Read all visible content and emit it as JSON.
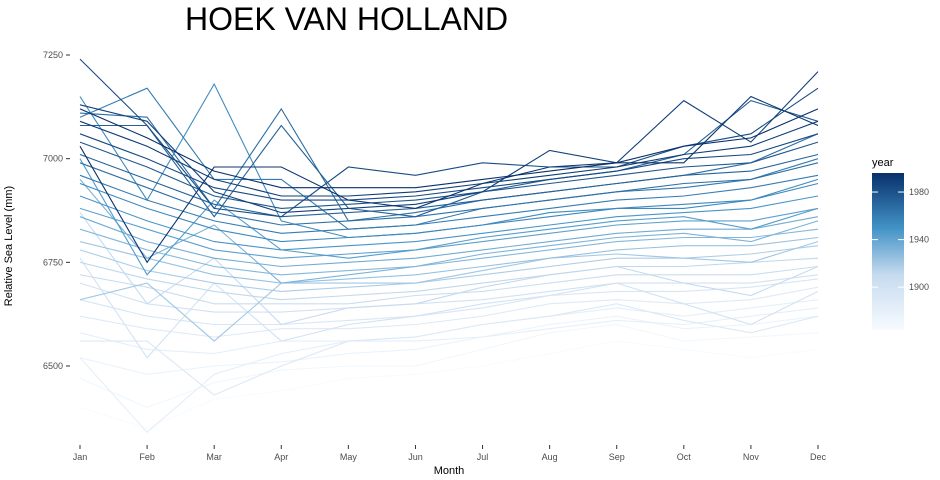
{
  "chart_data": {
    "type": "line",
    "title": "HOEK VAN HOLLAND",
    "xlabel": "Month",
    "ylabel": "Relative Sea Level (mm)",
    "categories": [
      "Jan",
      "Feb",
      "Mar",
      "Apr",
      "May",
      "Jun",
      "Jul",
      "Aug",
      "Sep",
      "Oct",
      "Nov",
      "Dec"
    ],
    "ylim": [
      6320,
      7250
    ],
    "yticks": [
      6500,
      6750,
      7000,
      7250
    ],
    "grid": false,
    "legend": {
      "title": "year",
      "position": "right",
      "ticks": [
        1900,
        1940,
        1980
      ],
      "range": [
        1864,
        1996
      ],
      "color_low": "#f7fbff",
      "color_high": "#08306b"
    },
    "series_note": "one line per year; color encodes year",
    "series": [
      {
        "year": 1864,
        "values": [
          6400,
          6350,
          6420,
          6440,
          6470,
          6480,
          6500,
          6530,
          6560,
          6540,
          6520,
          6540
        ]
      },
      {
        "year": 1870,
        "values": [
          6470,
          6400,
          6460,
          6490,
          6500,
          6500,
          6540,
          6580,
          6600,
          6560,
          6570,
          6580
        ]
      },
      {
        "year": 1876,
        "values": [
          6520,
          6480,
          6500,
          6510,
          6530,
          6540,
          6570,
          6600,
          6620,
          6590,
          6600,
          6620
        ]
      },
      {
        "year": 1882,
        "values": [
          6580,
          6540,
          6530,
          6560,
          6560,
          6570,
          6600,
          6620,
          6640,
          6620,
          6640,
          6660
        ]
      },
      {
        "year": 1888,
        "values": [
          6620,
          6590,
          6570,
          6590,
          6590,
          6600,
          6620,
          6650,
          6660,
          6650,
          6660,
          6690
        ]
      },
      {
        "year": 1894,
        "values": [
          6660,
          6620,
          6600,
          6600,
          6610,
          6620,
          6640,
          6670,
          6680,
          6680,
          6690,
          6710
        ]
      },
      {
        "year": 1900,
        "values": [
          6700,
          6650,
          6630,
          6630,
          6640,
          6650,
          6660,
          6680,
          6700,
          6700,
          6700,
          6720
        ]
      },
      {
        "year": 1906,
        "values": [
          6720,
          6690,
          6650,
          6650,
          6650,
          6670,
          6680,
          6700,
          6720,
          6720,
          6720,
          6740
        ]
      },
      {
        "year": 1912,
        "values": [
          6750,
          6710,
          6680,
          6660,
          6670,
          6680,
          6700,
          6720,
          6740,
          6740,
          6750,
          6760
        ]
      },
      {
        "year": 1918,
        "values": [
          6780,
          6730,
          6700,
          6680,
          6690,
          6700,
          6720,
          6740,
          6760,
          6760,
          6770,
          6790
        ]
      },
      {
        "year": 1924,
        "values": [
          6800,
          6760,
          6720,
          6700,
          6710,
          6720,
          6740,
          6760,
          6780,
          6790,
          6790,
          6810
        ]
      },
      {
        "year": 1930,
        "values": [
          6830,
          6780,
          6740,
          6720,
          6730,
          6740,
          6760,
          6780,
          6800,
          6810,
          6810,
          6830
        ]
      },
      {
        "year": 1936,
        "values": [
          6860,
          6800,
          6760,
          6740,
          6750,
          6760,
          6780,
          6800,
          6820,
          6830,
          6830,
          6860
        ]
      },
      {
        "year": 1942,
        "values": [
          6880,
          6830,
          6780,
          6760,
          6770,
          6780,
          6800,
          6820,
          6840,
          6850,
          6850,
          6880
        ]
      },
      {
        "year": 1948,
        "values": [
          6910,
          6850,
          6800,
          6780,
          6790,
          6800,
          6820,
          6840,
          6860,
          6870,
          6880,
          6910
        ]
      },
      {
        "year": 1954,
        "values": [
          6940,
          6880,
          6830,
          6800,
          6810,
          6820,
          6840,
          6860,
          6880,
          6890,
          6900,
          6940
        ]
      },
      {
        "year": 1960,
        "values": [
          6960,
          6900,
          6850,
          6820,
          6830,
          6840,
          6860,
          6880,
          6900,
          6910,
          6930,
          6960
        ]
      },
      {
        "year": 1966,
        "values": [
          6990,
          6930,
          6870,
          6840,
          6850,
          6860,
          6880,
          6900,
          6920,
          6940,
          6950,
          6990
        ]
      },
      {
        "year": 1972,
        "values": [
          7010,
          6950,
          6890,
          6860,
          6870,
          6880,
          6900,
          6920,
          6940,
          6960,
          6970,
          7010
        ]
      },
      {
        "year": 1978,
        "values": [
          7040,
          6980,
          6910,
          6880,
          6890,
          6900,
          6920,
          6940,
          6960,
          6980,
          6990,
          7040
        ]
      },
      {
        "year": 1984,
        "values": [
          7060,
          7000,
          6930,
          6900,
          6900,
          6910,
          6930,
          6950,
          6970,
          7000,
          7010,
          7060
        ]
      },
      {
        "year": 1990,
        "values": [
          7090,
          7030,
          6950,
          6910,
          6910,
          6920,
          6940,
          6960,
          6980,
          7010,
          7030,
          7090
        ]
      },
      {
        "year": 1996,
        "values": [
          7120,
          7050,
          6970,
          6930,
          6930,
          6930,
          6950,
          6970,
          6990,
          7030,
          7050,
          7120
        ]
      },
      {
        "year": 1881,
        "values": [
          6520,
          6340,
          6480,
          6530,
          6560,
          6560,
          6570,
          6590,
          6610,
          6600,
          6620,
          6640
        ]
      },
      {
        "year": 1890,
        "values": [
          6560,
          6560,
          6430,
          6500,
          6560,
          6570,
          6600,
          6620,
          6650,
          6610,
          6580,
          6620
        ]
      },
      {
        "year": 1899,
        "values": [
          6760,
          6520,
          6700,
          6560,
          6600,
          6620,
          6650,
          6670,
          6700,
          6650,
          6600,
          6680
        ]
      },
      {
        "year": 1910,
        "values": [
          6870,
          6650,
          6760,
          6600,
          6640,
          6650,
          6690,
          6720,
          6740,
          6700,
          6670,
          6740
        ]
      },
      {
        "year": 1921,
        "values": [
          6660,
          6700,
          6560,
          6700,
          6700,
          6700,
          6730,
          6760,
          6770,
          6760,
          6750,
          6800
        ]
      },
      {
        "year": 1932,
        "values": [
          6950,
          6760,
          6840,
          6700,
          6720,
          6740,
          6770,
          6790,
          6810,
          6820,
          6800,
          6850
        ]
      },
      {
        "year": 1944,
        "values": [
          7000,
          6720,
          6900,
          6780,
          6760,
          6780,
          6810,
          6830,
          6850,
          6860,
          6830,
          6880
        ]
      },
      {
        "year": 1953,
        "values": [
          7150,
          6900,
          7180,
          6850,
          6810,
          6820,
          6840,
          6870,
          6880,
          6880,
          6900,
          6950
        ]
      },
      {
        "year": 1961,
        "values": [
          7100,
          7170,
          6950,
          6950,
          6830,
          6840,
          6880,
          6900,
          6920,
          6930,
          6950,
          7000
        ]
      },
      {
        "year": 1967,
        "values": [
          7110,
          7100,
          6880,
          7120,
          6850,
          6870,
          6900,
          6920,
          6940,
          6960,
          6990,
          7060
        ]
      },
      {
        "year": 1974,
        "values": [
          7080,
          7080,
          6860,
          7080,
          6880,
          6860,
          6920,
          6950,
          6970,
          7010,
          7140,
          7090
        ]
      },
      {
        "year": 1983,
        "values": [
          7240,
          7080,
          6880,
          6860,
          6980,
          6960,
          6990,
          6980,
          6980,
          7030,
          7060,
          7170
        ]
      },
      {
        "year": 1988,
        "values": [
          7130,
          7090,
          6920,
          6870,
          6880,
          6890,
          6920,
          7020,
          6990,
          7140,
          7040,
          7210
        ]
      },
      {
        "year": 1993,
        "values": [
          7030,
          6750,
          6980,
          6980,
          6900,
          6880,
          6940,
          6980,
          6990,
          6990,
          7150,
          7080
        ]
      }
    ]
  }
}
